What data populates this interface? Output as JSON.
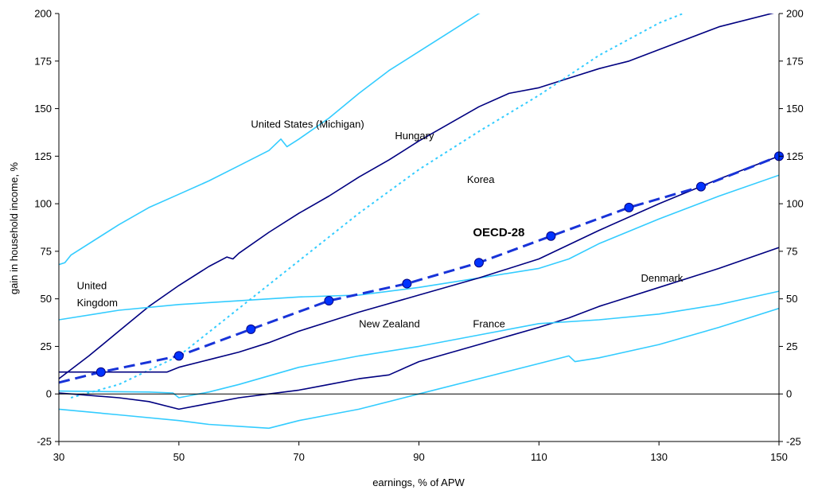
{
  "chart_data": {
    "type": "line",
    "title": "",
    "xlabel": "earnings, % of APW",
    "ylabel": "gain in household income, %",
    "xlim": [
      30,
      150
    ],
    "ylim": [
      -25,
      200
    ],
    "x_ticks": [
      "30",
      "50",
      "70",
      "90",
      "110",
      "130",
      "150"
    ],
    "y_ticks": [
      "-25",
      "0",
      "25",
      "50",
      "75",
      "100",
      "125",
      "150",
      "175",
      "200"
    ],
    "y_ticks_right": [
      "-25",
      "0",
      "25",
      "50",
      "75",
      "100",
      "125",
      "150",
      "175",
      "200"
    ],
    "grid": false,
    "legend": "none",
    "colors": {
      "dark_navy": "#000080",
      "cyan": "#33CCFF",
      "oecd_blue": "#1833D8",
      "marker": "#0033FF"
    },
    "series": [
      {
        "color": "#33CCFF",
        "style": "solid",
        "points": [
          [
            30,
            68
          ],
          [
            31,
            69
          ],
          [
            32,
            73
          ],
          [
            40,
            89
          ],
          [
            45,
            98
          ],
          [
            50,
            105
          ],
          [
            55,
            112
          ],
          [
            60,
            120
          ],
          [
            65,
            128
          ],
          [
            67,
            134
          ],
          [
            68,
            130
          ],
          [
            70,
            134
          ],
          [
            75,
            145
          ],
          [
            80,
            158
          ],
          [
            85,
            170
          ],
          [
            90,
            180
          ],
          [
            95,
            190
          ],
          [
            100,
            200
          ],
          [
            103,
            205
          ]
        ]
      },
      {
        "color": "#000080",
        "style": "solid",
        "points": [
          [
            30,
            8
          ],
          [
            35,
            20
          ],
          [
            40,
            33
          ],
          [
            45,
            46
          ],
          [
            50,
            57
          ],
          [
            55,
            67
          ],
          [
            58,
            72
          ],
          [
            59,
            71
          ],
          [
            60,
            74
          ],
          [
            65,
            85
          ],
          [
            70,
            95
          ],
          [
            75,
            104
          ],
          [
            80,
            114
          ],
          [
            85,
            123
          ],
          [
            90,
            133
          ],
          [
            95,
            142
          ],
          [
            100,
            151
          ],
          [
            105,
            158
          ],
          [
            110,
            161
          ],
          [
            115,
            166
          ],
          [
            120,
            171
          ],
          [
            125,
            175
          ],
          [
            130,
            181
          ],
          [
            140,
            193
          ],
          [
            150,
            201
          ]
        ]
      },
      {
        "color": "#33CCFF",
        "style": "dotted",
        "points": [
          [
            32,
            -2
          ],
          [
            40,
            5
          ],
          [
            50,
            20
          ],
          [
            60,
            45
          ],
          [
            70,
            70
          ],
          [
            80,
            95
          ],
          [
            90,
            118
          ],
          [
            100,
            138
          ],
          [
            110,
            157
          ],
          [
            120,
            178
          ],
          [
            130,
            195
          ],
          [
            134,
            200
          ]
        ]
      },
      {
        "color": "#33CCFF",
        "style": "solid",
        "points": [
          [
            30,
            39
          ],
          [
            40,
            44
          ],
          [
            50,
            47
          ],
          [
            60,
            49
          ],
          [
            70,
            51
          ],
          [
            80,
            52
          ],
          [
            90,
            56
          ],
          [
            100,
            61
          ],
          [
            110,
            66
          ],
          [
            115,
            71
          ],
          [
            120,
            79
          ],
          [
            130,
            92
          ],
          [
            140,
            104
          ],
          [
            150,
            115
          ]
        ]
      },
      {
        "color": "#000080",
        "style": "solid",
        "points": [
          [
            30,
            11.5
          ],
          [
            48,
            11.5
          ],
          [
            50,
            14
          ],
          [
            55,
            18
          ],
          [
            60,
            22
          ],
          [
            65,
            27
          ],
          [
            70,
            33
          ],
          [
            75,
            38
          ],
          [
            80,
            43
          ],
          [
            90,
            52
          ],
          [
            100,
            61
          ],
          [
            110,
            71
          ],
          [
            120,
            86
          ],
          [
            130,
            100
          ],
          [
            140,
            113
          ],
          [
            150,
            125
          ]
        ]
      },
      {
        "color": "#000080",
        "style": "solid",
        "points": [
          [
            30,
            0.5
          ],
          [
            40,
            -2
          ],
          [
            45,
            -4
          ],
          [
            50,
            -8
          ],
          [
            55,
            -5
          ],
          [
            60,
            -2
          ],
          [
            65,
            0
          ],
          [
            70,
            2
          ],
          [
            75,
            5
          ],
          [
            80,
            8
          ],
          [
            85,
            10
          ],
          [
            90,
            17
          ],
          [
            100,
            26
          ],
          [
            110,
            35
          ],
          [
            115,
            40
          ],
          [
            120,
            46
          ],
          [
            130,
            56
          ],
          [
            140,
            66
          ],
          [
            150,
            77
          ]
        ]
      },
      {
        "color": "#33CCFF",
        "style": "solid",
        "points": [
          [
            30,
            1.5
          ],
          [
            45,
            1
          ],
          [
            49,
            0.5
          ],
          [
            50,
            -2
          ],
          [
            55,
            1
          ],
          [
            60,
            5
          ],
          [
            70,
            14
          ],
          [
            80,
            20
          ],
          [
            90,
            25
          ],
          [
            100,
            31
          ],
          [
            110,
            37
          ],
          [
            120,
            39
          ],
          [
            130,
            42
          ],
          [
            140,
            47
          ],
          [
            150,
            54
          ]
        ]
      },
      {
        "color": "#33CCFF",
        "style": "solid",
        "points": [
          [
            30,
            -8
          ],
          [
            40,
            -11
          ],
          [
            50,
            -14
          ],
          [
            55,
            -16
          ],
          [
            60,
            -17
          ],
          [
            65,
            -18
          ],
          [
            70,
            -14
          ],
          [
            75,
            -11
          ],
          [
            80,
            -8
          ],
          [
            90,
            0
          ],
          [
            100,
            8
          ],
          [
            110,
            16
          ],
          [
            115,
            20
          ],
          [
            116,
            17
          ],
          [
            120,
            19
          ],
          [
            130,
            26
          ],
          [
            140,
            35
          ],
          [
            150,
            45
          ]
        ]
      },
      {
        "name": "OECD-28",
        "color": "#1833D8",
        "style": "dashed",
        "points": [
          [
            30,
            6
          ],
          [
            37,
            11.5
          ],
          [
            50,
            20
          ],
          [
            62,
            34
          ],
          [
            75,
            49
          ],
          [
            88,
            58
          ],
          [
            100,
            69
          ],
          [
            112,
            83
          ],
          [
            125,
            98
          ],
          [
            137,
            109
          ],
          [
            150,
            125
          ]
        ],
        "markers": [
          [
            37,
            11.5
          ],
          [
            50,
            20
          ],
          [
            62,
            34
          ],
          [
            75,
            49
          ],
          [
            88,
            58
          ],
          [
            100,
            69
          ],
          [
            112,
            83
          ],
          [
            125,
            98
          ],
          [
            137,
            109
          ],
          [
            150,
            125
          ]
        ]
      }
    ],
    "annotations": [
      {
        "text": "United States (Michigan)",
        "x": 62,
        "y": 140
      },
      {
        "text": "Hungary",
        "x": 86,
        "y": 134
      },
      {
        "text": "Korea",
        "x": 98,
        "y": 111
      },
      {
        "text": "OECD-28",
        "x": 99,
        "y": 83,
        "bold": true
      },
      {
        "text": "United",
        "x": 33,
        "y": 55
      },
      {
        "text": "Kingdom",
        "x": 33,
        "y": 46
      },
      {
        "text": "Denmark",
        "x": 127,
        "y": 59
      },
      {
        "text": "New Zealand",
        "x": 80,
        "y": 35
      },
      {
        "text": "France",
        "x": 99,
        "y": 35
      }
    ]
  }
}
